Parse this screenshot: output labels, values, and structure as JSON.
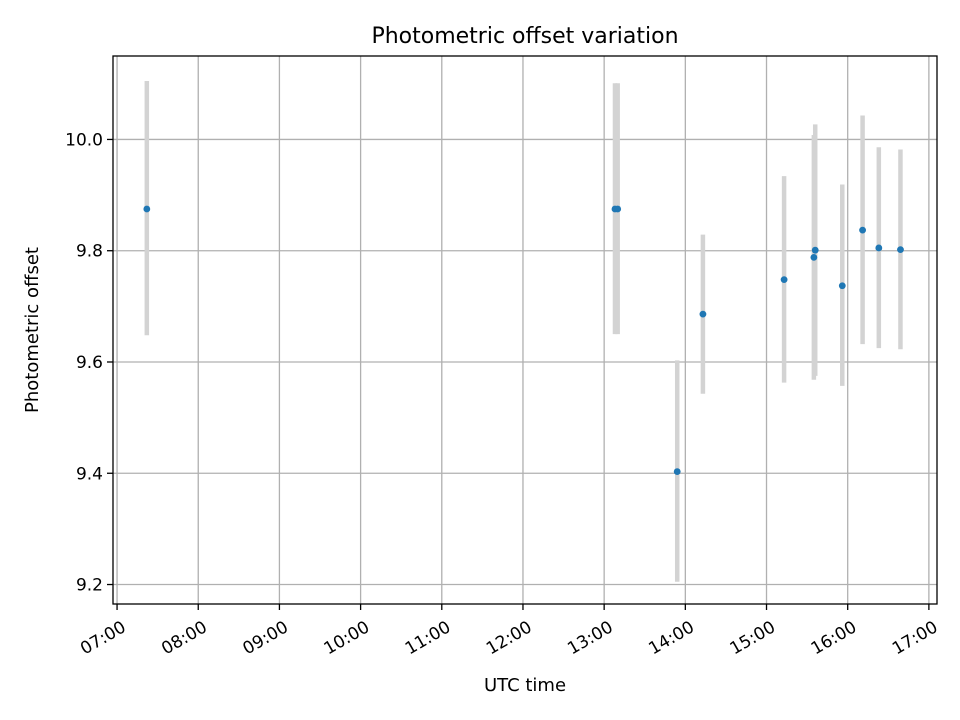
{
  "chart_data": {
    "type": "scatter",
    "title": "Photometric offset variation",
    "xlabel": "UTC time",
    "ylabel": "Photometric offset",
    "x_unit": "UTC hours of day (HH:MM ticks)",
    "xlim": [
      "06:57",
      "17:06"
    ],
    "ylim": [
      9.165,
      10.15
    ],
    "xticks": [
      "07:00",
      "08:00",
      "09:00",
      "10:00",
      "11:00",
      "12:00",
      "13:00",
      "14:00",
      "15:00",
      "16:00",
      "17:00"
    ],
    "yticks": [
      9.2,
      9.4,
      9.6,
      9.8,
      10.0
    ],
    "ytick_labels": [
      "9.2",
      "9.4",
      "9.6",
      "9.8",
      "10.0"
    ],
    "grid": true,
    "colors": {
      "point": "#1f77b4",
      "errorbar": "#d3d3d3",
      "grid": "#b0b0b0"
    },
    "points": [
      {
        "x": "07:22",
        "y": 9.875,
        "ylow": 9.648,
        "yhigh": 10.105
      },
      {
        "x": "13:08",
        "y": 9.875,
        "ylow": 9.65,
        "yhigh": 10.101
      },
      {
        "x": "13:10",
        "y": 9.875,
        "ylow": 9.65,
        "yhigh": 10.101
      },
      {
        "x": "13:54",
        "y": 9.403,
        "ylow": 9.205,
        "yhigh": 9.603
      },
      {
        "x": "14:13",
        "y": 9.686,
        "ylow": 9.543,
        "yhigh": 9.829
      },
      {
        "x": "15:13",
        "y": 9.748,
        "ylow": 9.563,
        "yhigh": 9.934
      },
      {
        "x": "15:35",
        "y": 9.788,
        "ylow": 9.568,
        "yhigh": 10.008
      },
      {
        "x": "15:36",
        "y": 9.801,
        "ylow": 9.575,
        "yhigh": 10.027
      },
      {
        "x": "15:56",
        "y": 9.737,
        "ylow": 9.557,
        "yhigh": 9.919
      },
      {
        "x": "16:11",
        "y": 9.837,
        "ylow": 9.632,
        "yhigh": 10.043
      },
      {
        "x": "16:23",
        "y": 9.805,
        "ylow": 9.625,
        "yhigh": 9.986
      },
      {
        "x": "16:39",
        "y": 9.802,
        "ylow": 9.623,
        "yhigh": 9.982
      }
    ]
  }
}
